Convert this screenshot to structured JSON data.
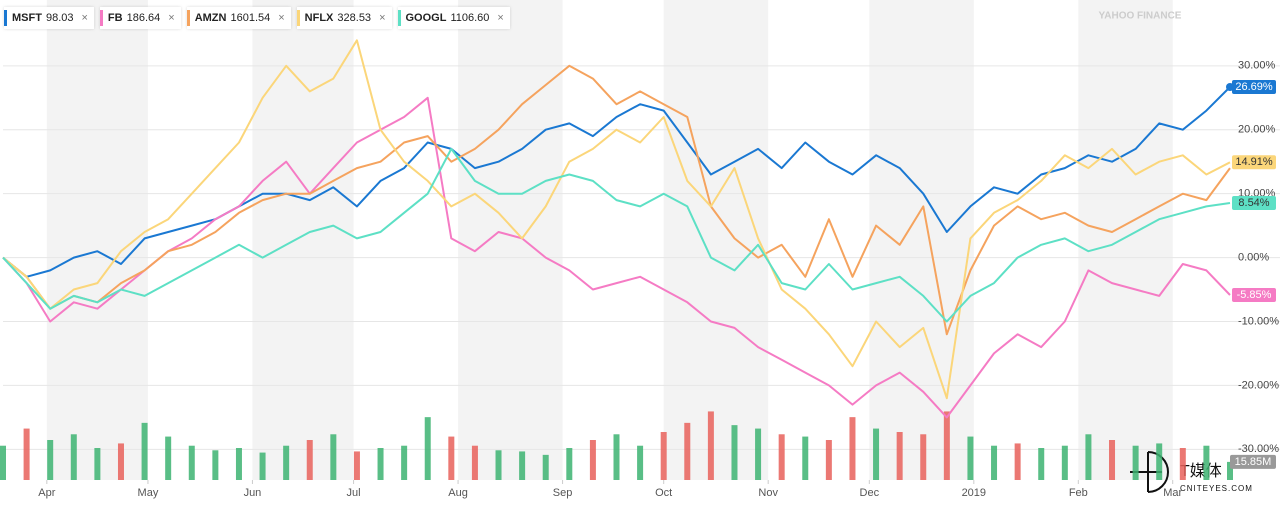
{
  "chart_data": {
    "type": "line",
    "watermark": "YAHOO FINANCE",
    "logo": {
      "mark": "T媒体",
      "site": "CNITEYES.COM"
    },
    "x": [
      0,
      7,
      14,
      21,
      28,
      35,
      42,
      49,
      56,
      63,
      70,
      77,
      84,
      91,
      98,
      105,
      112,
      119,
      126,
      133,
      140,
      147,
      154,
      161,
      168,
      175,
      182,
      189,
      196,
      203,
      210,
      217,
      224,
      231,
      238,
      245,
      252,
      259,
      266,
      273,
      280,
      287,
      294,
      301,
      308,
      315,
      322,
      329,
      336,
      343,
      350,
      357,
      364
    ],
    "xlim": [
      0,
      364
    ],
    "xticks": [
      {
        "value": 13,
        "label": "Apr"
      },
      {
        "value": 43,
        "label": "May"
      },
      {
        "value": 74,
        "label": "Jun"
      },
      {
        "value": 104,
        "label": "Jul"
      },
      {
        "value": 135,
        "label": "Aug"
      },
      {
        "value": 166,
        "label": "Sep"
      },
      {
        "value": 196,
        "label": "Oct"
      },
      {
        "value": 227,
        "label": "Nov"
      },
      {
        "value": 257,
        "label": "Dec"
      },
      {
        "value": 288,
        "label": "2019"
      },
      {
        "value": 319,
        "label": "Feb"
      },
      {
        "value": 347,
        "label": "Mar"
      }
    ],
    "ylim": [
      -34.8,
      40.3
    ],
    "yticks": [
      {
        "value": 30,
        "label": "30.00%"
      },
      {
        "value": 20,
        "label": "20.00%"
      },
      {
        "value": 10,
        "label": "10.00%"
      },
      {
        "value": 0,
        "label": "0.00%"
      },
      {
        "value": -10,
        "label": "-10.00%"
      },
      {
        "value": -20,
        "label": "-20.00%"
      },
      {
        "value": -30,
        "label": "-30.00%"
      }
    ],
    "grid": true,
    "series": [
      {
        "name": "MSFT",
        "price": "98.03",
        "color": "#1a78d2",
        "label_text": "#ffffff",
        "last_label": "26.69%",
        "values": [
          0,
          -3,
          -2,
          0,
          1,
          -1,
          3,
          4,
          5,
          6,
          8,
          10,
          10,
          9,
          11,
          8,
          12,
          14,
          18,
          17,
          14,
          15,
          17,
          20,
          21,
          19,
          22,
          24,
          23,
          18,
          13,
          15,
          17,
          14,
          18,
          15,
          13,
          16,
          14,
          10,
          4,
          8,
          11,
          10,
          13,
          14,
          16,
          15,
          17,
          21,
          20,
          23,
          26.69
        ]
      },
      {
        "name": "FB",
        "price": "186.64",
        "color": "#f57bc4",
        "label_text": "#ffffff",
        "last_label": "-5.85%",
        "values": [
          0,
          -4,
          -10,
          -7,
          -8,
          -5,
          -2,
          1,
          3,
          6,
          8,
          12,
          15,
          10,
          14,
          18,
          20,
          22,
          25,
          3,
          1,
          4,
          3,
          0,
          -2,
          -5,
          -4,
          -3,
          -5,
          -7,
          -10,
          -11,
          -14,
          -16,
          -18,
          -20,
          -23,
          -20,
          -18,
          -21,
          -25,
          -20,
          -15,
          -12,
          -14,
          -10,
          -2,
          -4,
          -5,
          -6,
          -1,
          -2,
          -5.85
        ]
      },
      {
        "name": "AMZN",
        "price": "1601.54",
        "color": "#f5a35e",
        "label_text": "#333333",
        "values": [
          0,
          -3,
          -8,
          -6,
          -7,
          -4,
          -2,
          1,
          2,
          4,
          7,
          9,
          10,
          10,
          12,
          14,
          15,
          18,
          19,
          15,
          17,
          20,
          24,
          27,
          30,
          28,
          24,
          26,
          24,
          22,
          8,
          3,
          0,
          2,
          -3,
          6,
          -3,
          5,
          2,
          8,
          -12,
          -2,
          5,
          8,
          6,
          7,
          5,
          4,
          6,
          8,
          10,
          9,
          14
        ]
      },
      {
        "name": "NFLX",
        "price": "328.53",
        "color": "#fbd67a",
        "label_text": "#333333",
        "last_label": "14.91%",
        "values": [
          0,
          -3,
          -8,
          -5,
          -4,
          1,
          4,
          6,
          10,
          14,
          18,
          25,
          30,
          26,
          28,
          34,
          20,
          15,
          12,
          8,
          10,
          7,
          3,
          8,
          15,
          17,
          20,
          18,
          22,
          12,
          8,
          14,
          3,
          -5,
          -8,
          -12,
          -17,
          -10,
          -14,
          -11,
          -22,
          3,
          7,
          9,
          12,
          16,
          14,
          17,
          13,
          15,
          16,
          13,
          14.91
        ]
      },
      {
        "name": "GOOGL",
        "price": "1106.60",
        "color": "#5de0c5",
        "label_text": "#333333",
        "last_label": "8.54%",
        "values": [
          0,
          -4,
          -8,
          -6,
          -7,
          -5,
          -6,
          -4,
          -2,
          0,
          2,
          0,
          2,
          4,
          5,
          3,
          4,
          7,
          10,
          17,
          12,
          10,
          10,
          12,
          13,
          12,
          9,
          8,
          10,
          8,
          0,
          -2,
          2,
          -4,
          -5,
          -1,
          -5,
          -4,
          -3,
          -6,
          -10,
          -6,
          -4,
          0,
          2,
          3,
          1,
          2,
          4,
          6,
          7,
          8,
          8.54
        ]
      }
    ],
    "volume": {
      "up_color": "#3cb371",
      "down_color": "#e8605a",
      "ylim": [
        0,
        70
      ],
      "last_label": "15.85M",
      "values": [
        30,
        45,
        35,
        40,
        28,
        32,
        50,
        38,
        30,
        26,
        28,
        24,
        30,
        35,
        40,
        25,
        28,
        30,
        55,
        38,
        30,
        26,
        25,
        22,
        28,
        35,
        40,
        30,
        42,
        50,
        60,
        48,
        45,
        40,
        38,
        35,
        55,
        45,
        42,
        40,
        60,
        38,
        30,
        32,
        28,
        30,
        40,
        35,
        30,
        32,
        28,
        30,
        15.85
      ]
    }
  }
}
